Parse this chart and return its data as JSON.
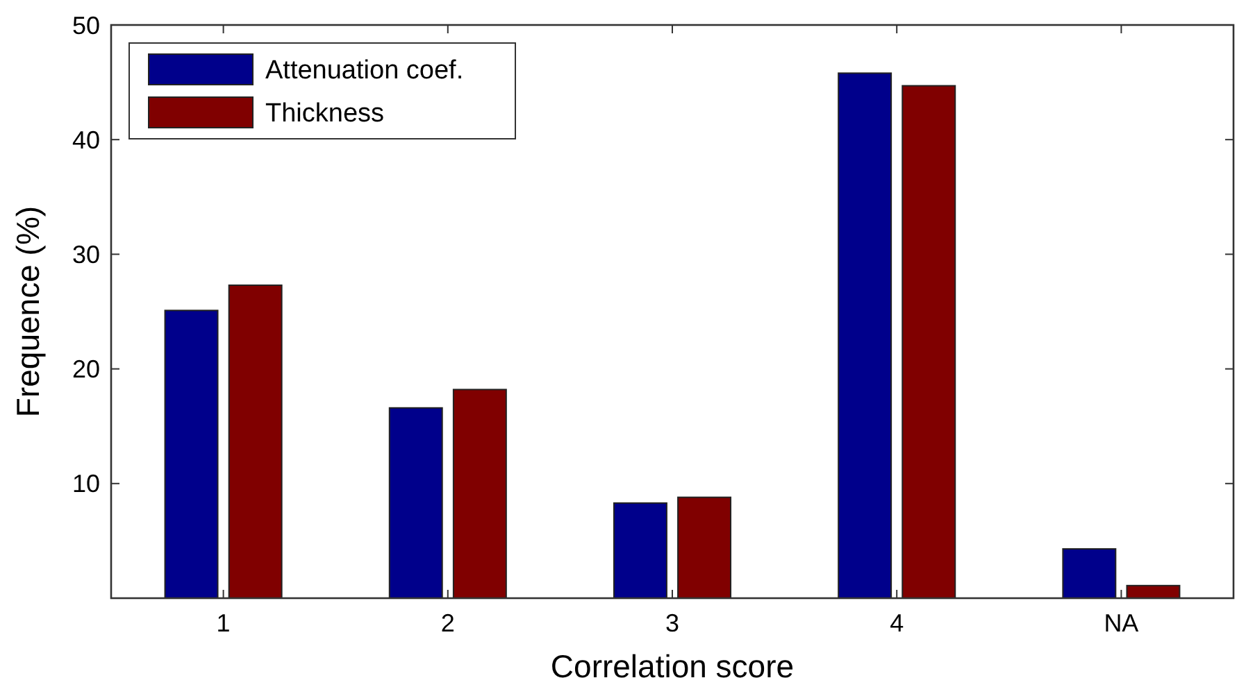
{
  "chart_data": {
    "type": "bar",
    "xlabel": "Correlation score",
    "ylabel": "Frequence (%)",
    "categories": [
      "1",
      "2",
      "3",
      "4",
      "NA"
    ],
    "series": [
      {
        "name": "Attenuation coef.",
        "color": "#00008b",
        "values": [
          25.1,
          16.6,
          8.3,
          45.8,
          4.3
        ]
      },
      {
        "name": "Thickness",
        "color": "#800000",
        "values": [
          27.3,
          18.2,
          8.8,
          44.7,
          1.1
        ]
      }
    ],
    "ylim": [
      0,
      50
    ],
    "yticks": [
      10,
      20,
      30,
      40,
      50
    ],
    "legend": "top left"
  }
}
